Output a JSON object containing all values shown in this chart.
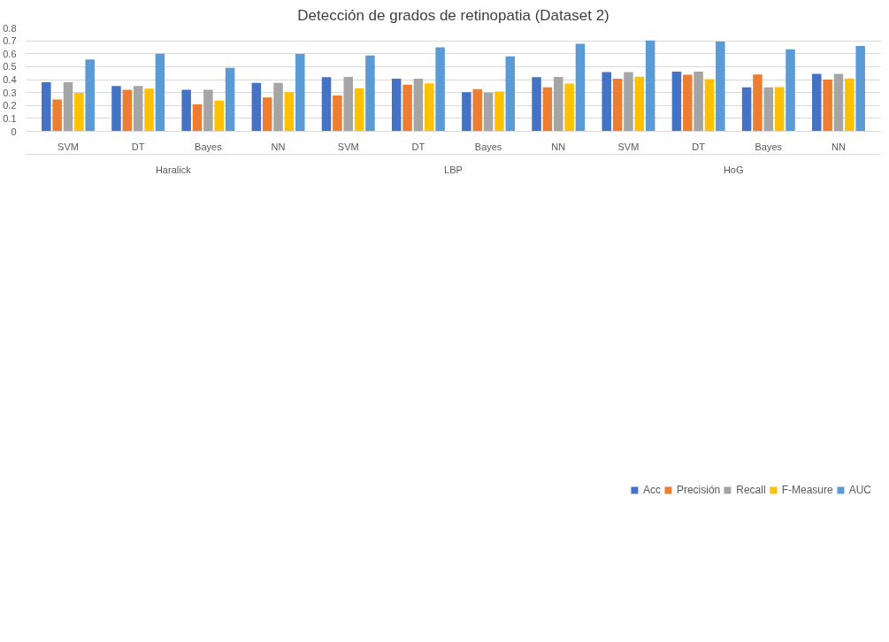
{
  "chart_data": {
    "type": "bar",
    "title": "Detección de grados de retinopatia (Dataset 2)",
    "categories": [
      "SVM",
      "DT",
      "Bayes",
      "NN",
      "SVM",
      "DT",
      "Bayes",
      "NN",
      "SVM",
      "DT",
      "Bayes",
      "NN"
    ],
    "annotations": [
      "Haralick",
      "LBP",
      "HoG"
    ],
    "series": [
      {
        "name": "Acc",
        "color": "#4472c4",
        "values": [
          0.38,
          0.35,
          0.321,
          0.375,
          0.419,
          0.406,
          0.302,
          0.419,
          0.458,
          0.461,
          0.34,
          0.444
        ]
      },
      {
        "name": "Precisión",
        "color": "#ed7d31",
        "values": [
          0.246,
          0.321,
          0.209,
          0.261,
          0.277,
          0.361,
          0.327,
          0.34,
          0.406,
          0.438,
          0.44,
          0.4
        ]
      },
      {
        "name": "Recall",
        "color": "#a5a5a5",
        "values": [
          0.38,
          0.35,
          0.321,
          0.375,
          0.421,
          0.406,
          0.3,
          0.421,
          0.458,
          0.461,
          0.34,
          0.444
        ]
      },
      {
        "name": "F-Measure",
        "color": "#ffc000",
        "values": [
          0.298,
          0.33,
          0.238,
          0.302,
          0.332,
          0.371,
          0.308,
          0.369,
          0.423,
          0.404,
          0.342,
          0.408
        ]
      },
      {
        "name": "AUC",
        "color": "#5b9bd5",
        "values": [
          0.556,
          0.6,
          0.49,
          0.598,
          0.586,
          0.65,
          0.58,
          0.677,
          0.702,
          0.694,
          0.635,
          0.659
        ]
      }
    ],
    "ylim": [
      0,
      0.8
    ],
    "yticks": [
      0,
      0.1,
      0.2,
      0.3,
      0.4,
      0.5,
      0.6,
      0.7,
      0.8
    ],
    "grid": "y",
    "legend": "bottom"
  }
}
